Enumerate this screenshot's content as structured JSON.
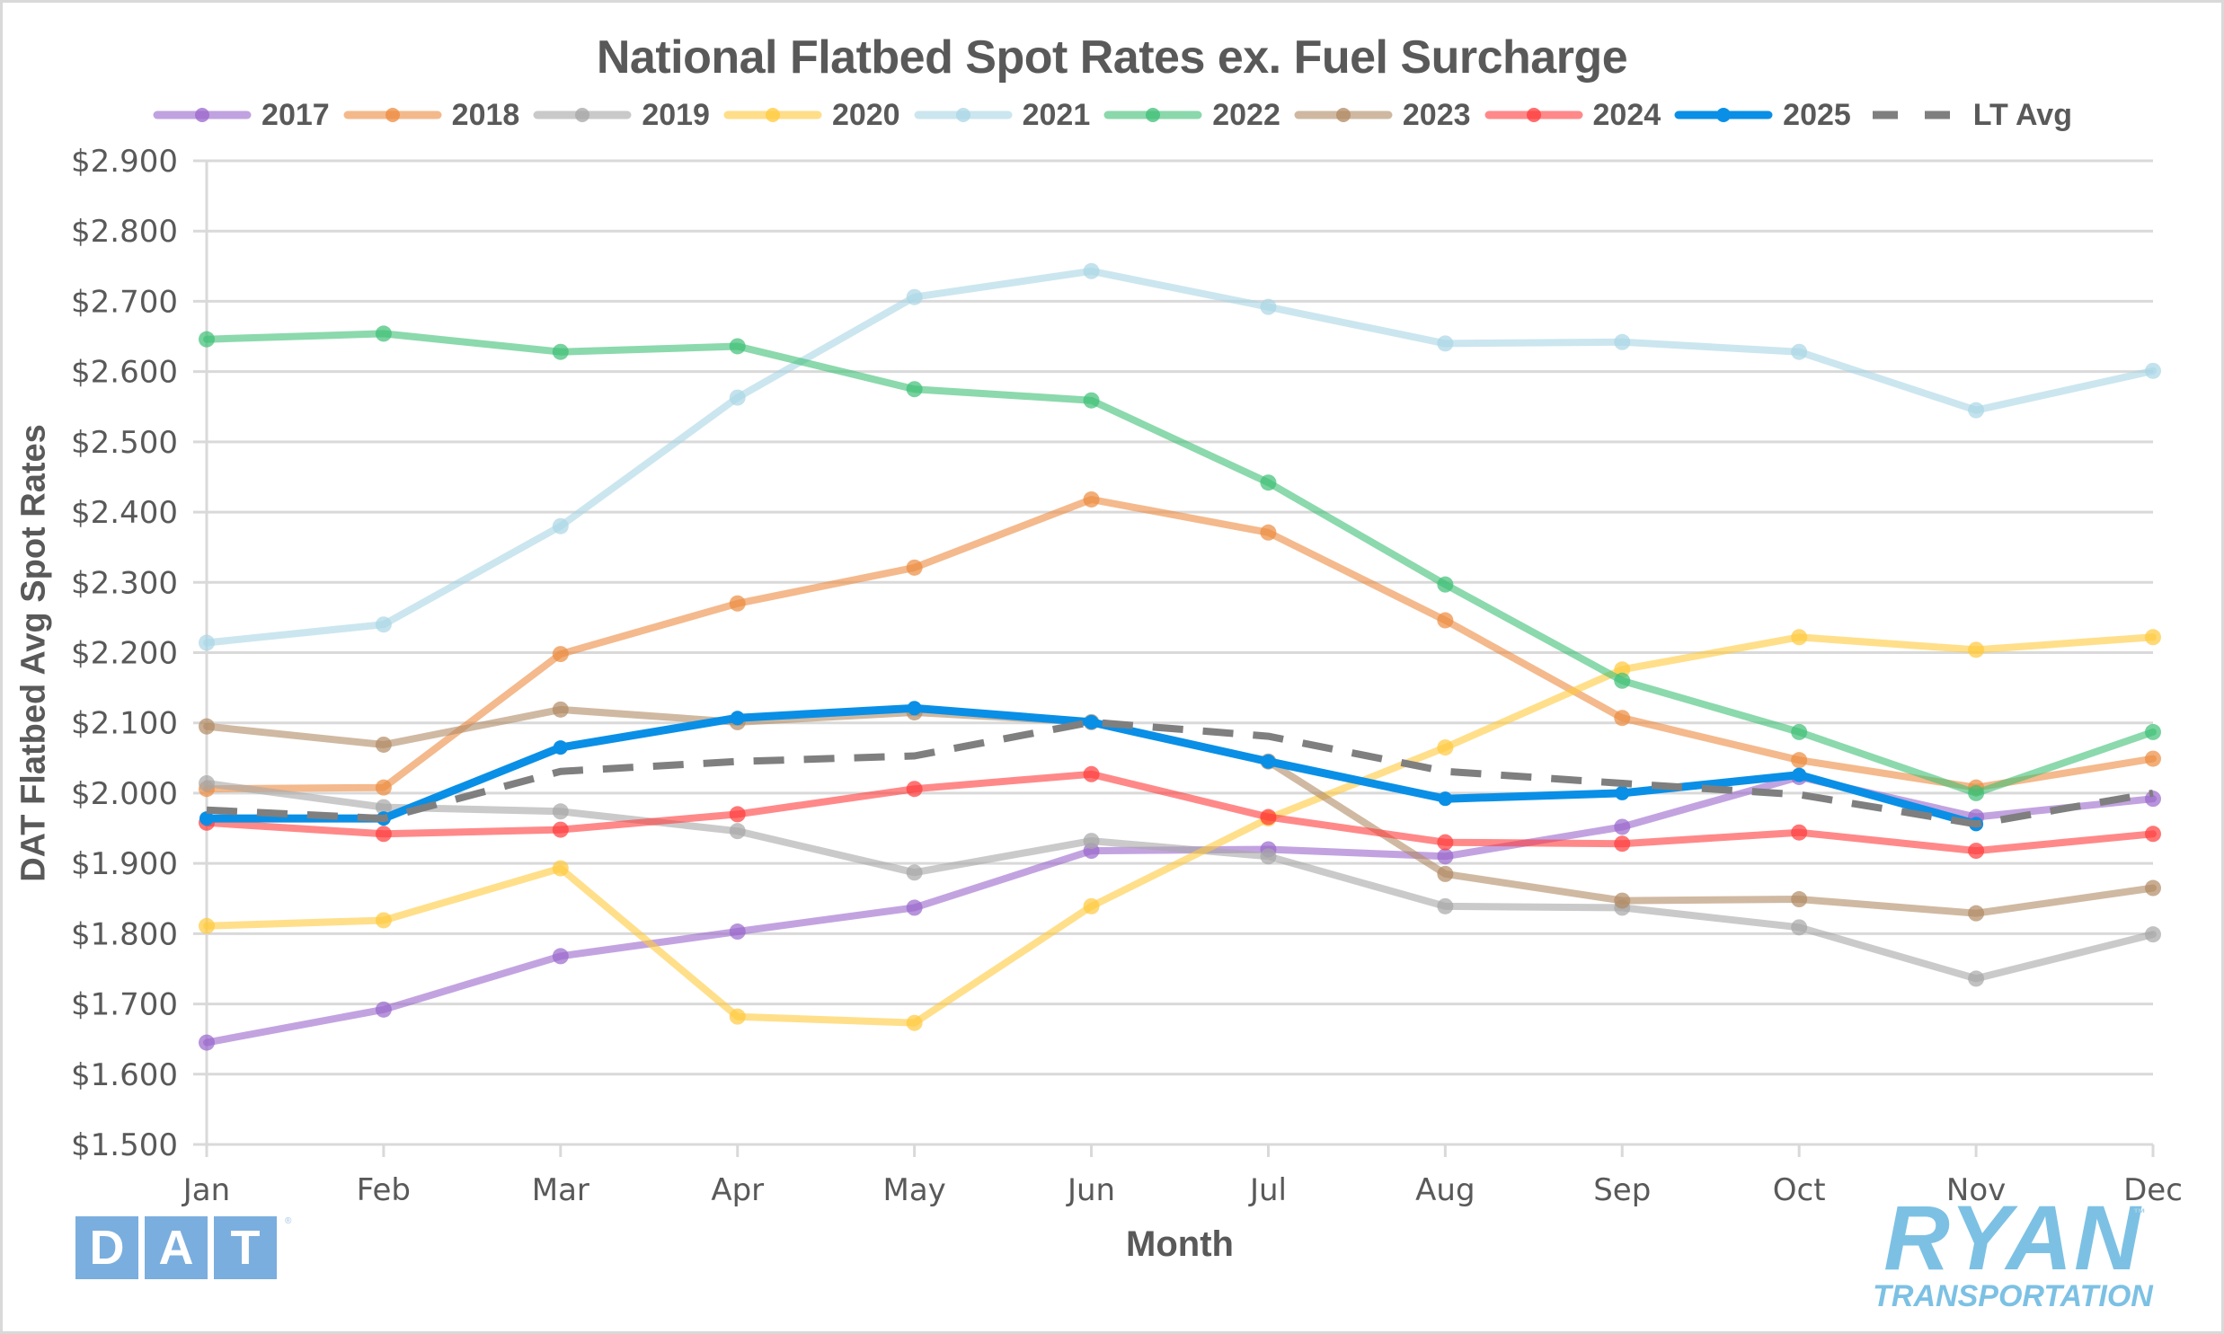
{
  "chart_data": {
    "type": "line",
    "title": "National Flatbed Spot Rates ex. Fuel Surcharge",
    "xlabel": "Month",
    "ylabel": "DAT Flatbed Avg Spot Rates",
    "categories": [
      "Jan",
      "Feb",
      "Mar",
      "Apr",
      "May",
      "Jun",
      "Jul",
      "Aug",
      "Sep",
      "Oct",
      "Nov",
      "Dec"
    ],
    "ylim": [
      1.5,
      2.9
    ],
    "yticks": [
      1.5,
      1.6,
      1.7,
      1.8,
      1.9,
      2.0,
      2.1,
      2.2,
      2.3,
      2.4,
      2.5,
      2.6,
      2.7,
      2.8,
      2.9
    ],
    "ytick_labels": [
      "$1.500",
      "$1.600",
      "$1.700",
      "$1.800",
      "$1.900",
      "$2.000",
      "$2.100",
      "$2.200",
      "$2.300",
      "$2.400",
      "$2.500",
      "$2.600",
      "$2.700",
      "$2.800",
      "$2.900"
    ],
    "grid": true,
    "legend_position": "top",
    "series": [
      {
        "name": "2017",
        "color": "#9966cc",
        "style": "solid-markers",
        "values": [
          1.645,
          1.692,
          1.768,
          1.803,
          1.837,
          1.918,
          1.92,
          1.91,
          1.952,
          2.023,
          1.966,
          1.992
        ]
      },
      {
        "name": "2018",
        "color": "#ed8b3f",
        "style": "solid-markers",
        "values": [
          2.006,
          2.008,
          2.198,
          2.27,
          2.321,
          2.418,
          2.371,
          2.246,
          2.107,
          2.047,
          2.008,
          2.049
        ]
      },
      {
        "name": "2019",
        "color": "#a6a6a6",
        "style": "solid-markers",
        "values": [
          2.014,
          1.98,
          1.974,
          1.946,
          1.887,
          1.932,
          1.91,
          1.839,
          1.837,
          1.809,
          1.736,
          1.799
        ]
      },
      {
        "name": "2020",
        "color": "#ffc93c",
        "style": "solid-markers",
        "values": [
          1.811,
          1.819,
          1.893,
          1.682,
          1.673,
          1.839,
          1.964,
          2.065,
          2.176,
          2.222,
          2.204,
          2.222
        ]
      },
      {
        "name": "2021",
        "color": "#a9d6e5",
        "style": "solid-markers",
        "values": [
          2.214,
          2.24,
          2.38,
          2.563,
          2.706,
          2.743,
          2.692,
          2.64,
          2.642,
          2.628,
          2.545,
          2.601
        ]
      },
      {
        "name": "2022",
        "color": "#3dbf75",
        "style": "solid-markers",
        "values": [
          2.646,
          2.654,
          2.628,
          2.636,
          2.575,
          2.559,
          2.442,
          2.297,
          2.16,
          2.087,
          2.0,
          2.087
        ]
      },
      {
        "name": "2023",
        "color": "#b08a64",
        "style": "solid-markers",
        "values": [
          2.095,
          2.069,
          2.119,
          2.101,
          2.115,
          2.101,
          2.045,
          1.885,
          1.847,
          1.849,
          1.829,
          1.865
        ]
      },
      {
        "name": "2024",
        "color": "#ff3b3b",
        "style": "solid-markers",
        "values": [
          1.958,
          1.942,
          1.948,
          1.97,
          2.006,
          2.027,
          1.966,
          1.93,
          1.928,
          1.944,
          1.918,
          1.942
        ]
      },
      {
        "name": "2025",
        "color": "#0a8fe6",
        "style": "solid-markers-bold",
        "values": [
          1.964,
          1.964,
          2.065,
          2.107,
          2.121,
          2.101,
          2.045,
          1.992,
          2.0,
          2.026,
          1.956,
          null
        ]
      },
      {
        "name": "LT Avg",
        "color": "#7f7f7f",
        "style": "dashed",
        "values": [
          1.976,
          1.964,
          2.031,
          2.045,
          2.053,
          2.101,
          2.081,
          2.031,
          2.014,
          1.998,
          1.956,
          2.0
        ]
      }
    ]
  },
  "logos": {
    "dat": [
      "D",
      "A",
      "T"
    ],
    "dat_mark": "®",
    "ryan_main": "RYAN",
    "ryan_sub": "TRANSPORTATION",
    "ryan_mark": "™"
  }
}
